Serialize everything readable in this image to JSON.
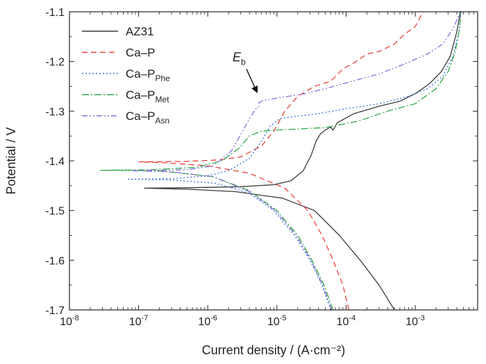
{
  "chart_data": {
    "type": "line",
    "xlabel": "Current density / (A·cm⁻²)",
    "ylabel": "Potential / V",
    "x_scale": "log",
    "xlim": [
      1e-08,
      0.008
    ],
    "ylim": [
      -1.7,
      -1.1
    ],
    "x_ticks": [
      {
        "value": 1e-08,
        "base": "10",
        "exp": "-8"
      },
      {
        "value": 1e-07,
        "base": "10",
        "exp": "-7"
      },
      {
        "value": 1e-06,
        "base": "10",
        "exp": "-6"
      },
      {
        "value": 1e-05,
        "base": "10",
        "exp": "-5"
      },
      {
        "value": 0.0001,
        "base": "10",
        "exp": "-4"
      },
      {
        "value": 0.001,
        "base": "10",
        "exp": "-3"
      }
    ],
    "y_ticks": [
      {
        "value": -1.1,
        "label": "-1.1"
      },
      {
        "value": -1.2,
        "label": "-1.2"
      },
      {
        "value": -1.3,
        "label": "-1.3"
      },
      {
        "value": -1.4,
        "label": "-1.4"
      },
      {
        "value": -1.5,
        "label": "-1.5"
      },
      {
        "value": -1.6,
        "label": "-1.6"
      },
      {
        "value": -1.7,
        "label": "-1.7"
      }
    ],
    "grid": false,
    "legend_position": "top-left",
    "annotation": {
      "text": "E",
      "sub": "b",
      "x": 5.5e-06,
      "y": -1.278
    },
    "series": [
      {
        "name": "AZ31",
        "sub": "",
        "color": "#3a3a3a",
        "dash": "",
        "cathodic": [
          [
            0.0005,
            -1.7
          ],
          [
            0.0003,
            -1.65
          ],
          [
            0.00016,
            -1.6
          ],
          [
            8e-05,
            -1.55
          ],
          [
            3.5e-05,
            -1.5
          ],
          [
            1.2e-05,
            -1.475
          ],
          [
            2.5e-06,
            -1.462
          ],
          [
            5e-07,
            -1.457
          ],
          [
            1.2e-07,
            -1.455
          ]
        ],
        "anodic": [
          [
            1.2e-07,
            -1.455
          ],
          [
            6e-07,
            -1.454
          ],
          [
            3e-06,
            -1.452
          ],
          [
            9e-06,
            -1.448
          ],
          [
            1.6e-05,
            -1.44
          ],
          [
            2.4e-05,
            -1.42
          ],
          [
            3.1e-05,
            -1.39
          ],
          [
            3.7e-05,
            -1.36
          ],
          [
            4.3e-05,
            -1.345
          ],
          [
            5e-05,
            -1.338
          ],
          [
            6e-05,
            -1.332
          ],
          [
            6.5e-05,
            -1.338
          ],
          [
            7.5e-05,
            -1.323
          ],
          [
            0.00013,
            -1.305
          ],
          [
            0.0003,
            -1.29
          ],
          [
            0.0006,
            -1.28
          ],
          [
            0.001,
            -1.265
          ],
          [
            0.0016,
            -1.245
          ],
          [
            0.0024,
            -1.22
          ],
          [
            0.0032,
            -1.19
          ],
          [
            0.004,
            -1.14
          ],
          [
            0.0045,
            -1.1
          ]
        ]
      },
      {
        "name": "Ca–P",
        "sub": "",
        "color": "#e8413a",
        "dash": "8 5",
        "cathodic": [
          [
            0.00011,
            -1.7
          ],
          [
            9e-05,
            -1.65
          ],
          [
            6.5e-05,
            -1.6
          ],
          [
            4.5e-05,
            -1.55
          ],
          [
            2.8e-05,
            -1.5
          ],
          [
            1.3e-05,
            -1.455
          ],
          [
            4e-06,
            -1.425
          ],
          [
            1e-06,
            -1.41
          ],
          [
            2.5e-07,
            -1.404
          ],
          [
            1e-07,
            -1.402
          ]
        ],
        "anodic": [
          [
            1e-07,
            -1.402
          ],
          [
            5e-07,
            -1.401
          ],
          [
            1.5e-06,
            -1.398
          ],
          [
            3e-06,
            -1.392
          ],
          [
            6e-06,
            -1.37
          ],
          [
            9e-06,
            -1.34
          ],
          [
            1.3e-05,
            -1.3
          ],
          [
            2e-05,
            -1.27
          ],
          [
            3.5e-05,
            -1.25
          ],
          [
            6e-05,
            -1.24
          ],
          [
            9e-05,
            -1.215
          ],
          [
            0.00014,
            -1.2
          ],
          [
            0.0002,
            -1.185
          ],
          [
            0.0003,
            -1.18
          ],
          [
            0.0005,
            -1.165
          ],
          [
            0.0007,
            -1.145
          ],
          [
            0.001,
            -1.13
          ],
          [
            0.0013,
            -1.1
          ]
        ]
      },
      {
        "name": "Ca–P",
        "sub": "Phe",
        "color": "#3a6fd8",
        "dash": "2 3",
        "cathodic": [
          [
            6e-05,
            -1.7
          ],
          [
            4.5e-05,
            -1.65
          ],
          [
            3e-05,
            -1.6
          ],
          [
            1.8e-05,
            -1.55
          ],
          [
            9e-06,
            -1.5
          ],
          [
            4e-06,
            -1.465
          ],
          [
            1.3e-06,
            -1.445
          ],
          [
            2.5e-07,
            -1.438
          ],
          [
            7e-08,
            -1.437
          ]
        ],
        "anodic": [
          [
            7e-08,
            -1.437
          ],
          [
            3e-07,
            -1.436
          ],
          [
            1e-06,
            -1.43
          ],
          [
            2e-06,
            -1.42
          ],
          [
            4e-06,
            -1.395
          ],
          [
            6e-06,
            -1.36
          ],
          [
            8e-06,
            -1.33
          ],
          [
            1.1e-05,
            -1.315
          ],
          [
            2e-05,
            -1.31
          ],
          [
            4e-05,
            -1.305
          ],
          [
            0.0001,
            -1.295
          ],
          [
            0.0003,
            -1.285
          ],
          [
            0.0008,
            -1.27
          ],
          [
            0.0015,
            -1.255
          ],
          [
            0.0025,
            -1.23
          ],
          [
            0.0035,
            -1.19
          ],
          [
            0.0043,
            -1.14
          ],
          [
            0.0046,
            -1.1
          ]
        ]
      },
      {
        "name": "Ca–P",
        "sub": "Met",
        "color": "#2ea84a",
        "dash": "10 3 2 3",
        "cathodic": [
          [
            6.5e-05,
            -1.7
          ],
          [
            4.8e-05,
            -1.65
          ],
          [
            3.2e-05,
            -1.6
          ],
          [
            2e-05,
            -1.55
          ],
          [
            1e-05,
            -1.5
          ],
          [
            4e-06,
            -1.46
          ],
          [
            1.2e-06,
            -1.432
          ],
          [
            2e-07,
            -1.42
          ],
          [
            2.8e-08,
            -1.419
          ]
        ],
        "anodic": [
          [
            2.8e-08,
            -1.419
          ],
          [
            1.5e-07,
            -1.418
          ],
          [
            7e-07,
            -1.413
          ],
          [
            1.6e-06,
            -1.4
          ],
          [
            2.8e-06,
            -1.375
          ],
          [
            4e-06,
            -1.35
          ],
          [
            6e-06,
            -1.34
          ],
          [
            1e-05,
            -1.338
          ],
          [
            2e-05,
            -1.336
          ],
          [
            5e-05,
            -1.333
          ],
          [
            0.00015,
            -1.32
          ],
          [
            0.0004,
            -1.3
          ],
          [
            0.001,
            -1.285
          ],
          [
            0.002,
            -1.255
          ],
          [
            0.003,
            -1.22
          ],
          [
            0.0038,
            -1.18
          ],
          [
            0.0043,
            -1.14
          ],
          [
            0.0046,
            -1.1
          ]
        ]
      },
      {
        "name": "Ca–P",
        "sub": "Asn",
        "color": "#8a6fd8",
        "dash": "8 3 2 3 2 3",
        "cathodic": [
          [
            6.2e-05,
            -1.7
          ],
          [
            4.6e-05,
            -1.65
          ],
          [
            3.1e-05,
            -1.6
          ],
          [
            1.9e-05,
            -1.55
          ],
          [
            9.5e-06,
            -1.5
          ],
          [
            4e-06,
            -1.462
          ],
          [
            1.2e-06,
            -1.432
          ],
          [
            3e-07,
            -1.422
          ],
          [
            8e-08,
            -1.42
          ]
        ],
        "anodic": [
          [
            8e-08,
            -1.42
          ],
          [
            5e-07,
            -1.418
          ],
          [
            1.2e-06,
            -1.41
          ],
          [
            2.2e-06,
            -1.38
          ],
          [
            3.2e-06,
            -1.34
          ],
          [
            4.2e-06,
            -1.31
          ],
          [
            5e-06,
            -1.295
          ],
          [
            5.5e-06,
            -1.29
          ],
          [
            5.5e-06,
            -1.283
          ],
          [
            6.5e-06,
            -1.278
          ],
          [
            1.2e-05,
            -1.272
          ],
          [
            2.5e-05,
            -1.265
          ],
          [
            6e-05,
            -1.252
          ],
          [
            0.00012,
            -1.24
          ],
          [
            0.0003,
            -1.225
          ],
          [
            0.0007,
            -1.205
          ],
          [
            0.0015,
            -1.185
          ],
          [
            0.0025,
            -1.165
          ],
          [
            0.0035,
            -1.135
          ],
          [
            0.0045,
            -1.1
          ]
        ]
      }
    ]
  }
}
